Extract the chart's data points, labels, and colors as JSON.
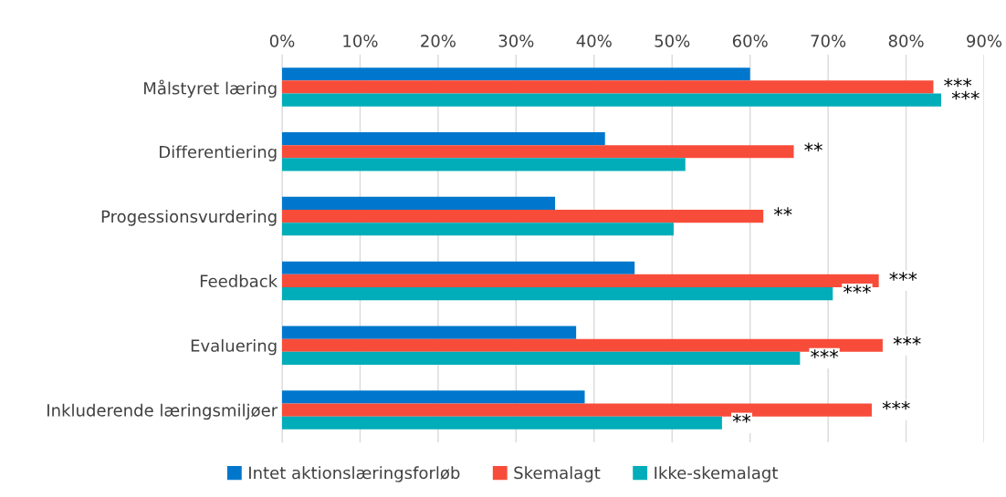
{
  "chart_data": {
    "type": "bar",
    "orientation": "horizontal",
    "categories": [
      "Målstyret læring",
      "Differentiering",
      "Progessionsvurdering",
      "Feedback",
      "Evaluering",
      "Inkluderende læringsmiljøer"
    ],
    "series": [
      {
        "name": "Intet aktionslæringsforløb",
        "color": "#0077cc",
        "values": [
          60.0,
          41.4,
          35.0,
          45.2,
          37.7,
          38.8
        ]
      },
      {
        "name": "Skemalagt",
        "color": "#f84c3a",
        "values": [
          83.5,
          65.6,
          61.7,
          76.5,
          77.0,
          75.6
        ],
        "value_labels": [
          "***",
          "**",
          "**",
          "***",
          "***",
          "***"
        ]
      },
      {
        "name": "Ikke-skemalagt",
        "color": "#00adb9",
        "values": [
          84.5,
          51.7,
          50.2,
          70.6,
          66.4,
          56.4
        ],
        "value_labels": [
          "***",
          null,
          null,
          "***",
          "***",
          "**"
        ]
      }
    ],
    "xlim": [
      0,
      90
    ],
    "xticks": [
      {
        "value": 0,
        "label": "0%"
      },
      {
        "value": 10,
        "label": "10%"
      },
      {
        "value": 20,
        "label": "20%"
      },
      {
        "value": 30,
        "label": "30%"
      },
      {
        "value": 40,
        "label": "40%"
      },
      {
        "value": 50,
        "label": "50%"
      },
      {
        "value": 60,
        "label": "60%"
      },
      {
        "value": 70,
        "label": "70%"
      },
      {
        "value": 80,
        "label": "80%"
      },
      {
        "value": 90,
        "label": "90%"
      }
    ],
    "grid": "x",
    "legend": "bottom"
  }
}
